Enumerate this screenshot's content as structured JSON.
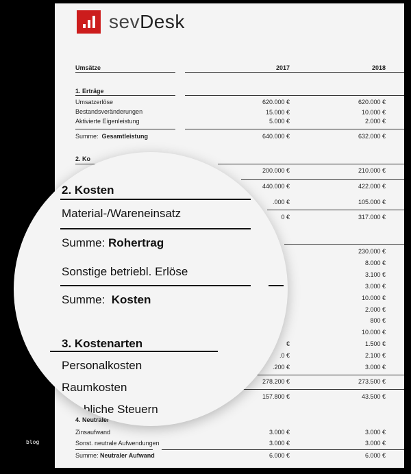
{
  "brand": {
    "name_light": "sev",
    "name_bold": "Desk",
    "color": "#cc1c1c",
    "icon": "bar-chart-icon"
  },
  "side_label": "blog",
  "table": {
    "header": {
      "label": "Umsätze",
      "col1": "2017",
      "col2": "2018"
    },
    "section1": {
      "title": "1. Erträge",
      "rows": [
        {
          "label": "Umsatzerlöse",
          "v2017": "620.000 €",
          "v2018": "620.000 €"
        },
        {
          "label": "Bestandsveränderungen",
          "v2017": "15.000 €",
          "v2018": "10.000 €"
        },
        {
          "label": "Aktivierte Eigenleistung",
          "v2017": "5.000 €",
          "v2018": "2.000 €"
        }
      ],
      "sum_prefix": "Summe:",
      "sum_label": "Gesamtleistung",
      "sum2017": "640.000 €",
      "sum2018": "632.000 €"
    },
    "section2_partial_title": "2. Ko",
    "values": [
      {
        "v2017": "200.000 €",
        "v2018": "210.000 €"
      },
      {
        "v2017": "440.000 €",
        "v2018": "422.000 €"
      },
      {
        "v2017": ".000 €",
        "v2018": "105.000 €"
      },
      {
        "v2017": "0 €",
        "v2018": "317.000 €"
      },
      {
        "v2018": "230.000 €"
      },
      {
        "v2018": "8.000 €"
      },
      {
        "v2018": "3.100 €"
      },
      {
        "v2018": "3.000 €"
      },
      {
        "v2018": "10.000 €"
      },
      {
        "v2018": "2.000 €"
      },
      {
        "v2018": "800 €"
      },
      {
        "v2018": "10.000 €"
      },
      {
        "v2017": "€",
        "v2018": "1.500 €"
      },
      {
        "v2017": ".0 €",
        "v2018": "2.100 €"
      },
      {
        "v2017": ".200 €",
        "v2018": "3.000 €"
      },
      {
        "v2017": "278.200 €",
        "v2018": "273.500 €"
      },
      {
        "v2017": "157.800 €",
        "v2018": "43.500 €"
      }
    ],
    "section4": {
      "title": "4. Neutraler",
      "rows": [
        {
          "label": "Zinsaufwand",
          "v2017": "3.000 €",
          "v2018": "3.000 €"
        },
        {
          "label": "Sonst. neutrale Aufwendungen",
          "v2017": "3.000 €",
          "v2018": "3.000 €"
        }
      ],
      "sum_prefix": "Summe:",
      "sum_label": "Neutraler Aufwand",
      "sum2017": "6.000 €",
      "sum2018": "6.000 €"
    }
  },
  "magnifier": {
    "section2_title": "2. Kosten",
    "material": "Material-/Wareneinsatz",
    "sum_prefix": "Summe:",
    "rohertrag": "Rohertrag",
    "sonstige": "Sonstige betriebl. Erlöse",
    "sum_prefix2": "Summe:",
    "kosten": "Kosten",
    "section3_title": "3. Kostenarten",
    "personal": "Personalkosten",
    "raum": "Raumkosten",
    "steuern": "bliche Steuern"
  }
}
